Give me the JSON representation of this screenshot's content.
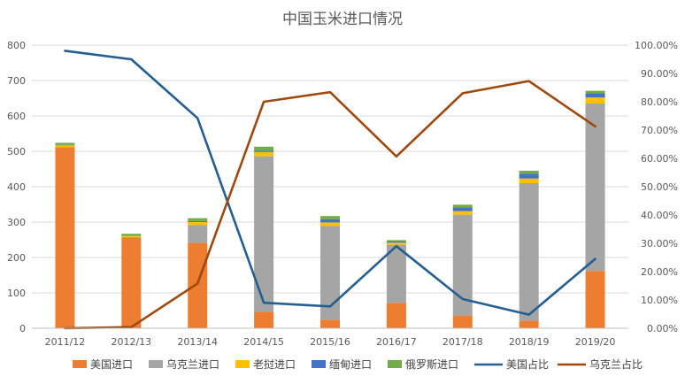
{
  "chart_data": {
    "type": "bar",
    "title": "中国玉米进口情况",
    "categories": [
      "2011/12",
      "2012/13",
      "2013/14",
      "2014/15",
      "2015/16",
      "2016/17",
      "2017/18",
      "2018/19",
      "2019/20"
    ],
    "ylim": [
      0,
      800
    ],
    "y_ticks": [
      "0",
      "100",
      "200",
      "300",
      "400",
      "500",
      "600",
      "700",
      "800"
    ],
    "y2lim": [
      0,
      1
    ],
    "y2_ticks": [
      "0.00%",
      "10.00%",
      "20.00%",
      "30.00%",
      "40.00%",
      "50.00%",
      "60.00%",
      "70.00%",
      "80.00%",
      "90.00%",
      "100.00%"
    ],
    "grid": true,
    "legend_position": "bottom",
    "series": [
      {
        "name": "美国进口",
        "kind": "bar",
        "axis": "left",
        "color": "#ED7D31",
        "values": [
          512,
          257,
          241,
          47,
          24,
          72,
          36,
          21,
          162
        ]
      },
      {
        "name": "乌克兰进口",
        "kind": "bar",
        "axis": "left",
        "color": "#A5A5A5",
        "values": [
          0,
          1,
          51,
          439,
          265,
          164,
          285,
          389,
          473
        ]
      },
      {
        "name": "老挝进口",
        "kind": "bar",
        "axis": "left",
        "color": "#FFC000",
        "values": [
          5,
          3,
          8,
          12,
          10,
          6,
          10,
          13,
          17
        ]
      },
      {
        "name": "缅甸进口",
        "kind": "bar",
        "axis": "left",
        "color": "#4472C4",
        "values": [
          1,
          1,
          3,
          4,
          9,
          3,
          10,
          14,
          12
        ]
      },
      {
        "name": "俄罗斯进口",
        "kind": "bar",
        "axis": "left",
        "color": "#70AD47",
        "values": [
          6,
          5,
          8,
          11,
          9,
          4,
          8,
          8,
          7
        ]
      },
      {
        "name": "美国占比",
        "kind": "line",
        "axis": "right",
        "color": "#255E91",
        "values": [
          0.98,
          0.95,
          0.742,
          0.09,
          0.077,
          0.29,
          0.103,
          0.048,
          0.245
        ]
      },
      {
        "name": "乌克兰占比",
        "kind": "line",
        "axis": "right",
        "color": "#9E480E",
        "values": [
          0.0,
          0.004,
          0.158,
          0.8,
          0.834,
          0.607,
          0.83,
          0.873,
          0.713
        ]
      }
    ]
  }
}
